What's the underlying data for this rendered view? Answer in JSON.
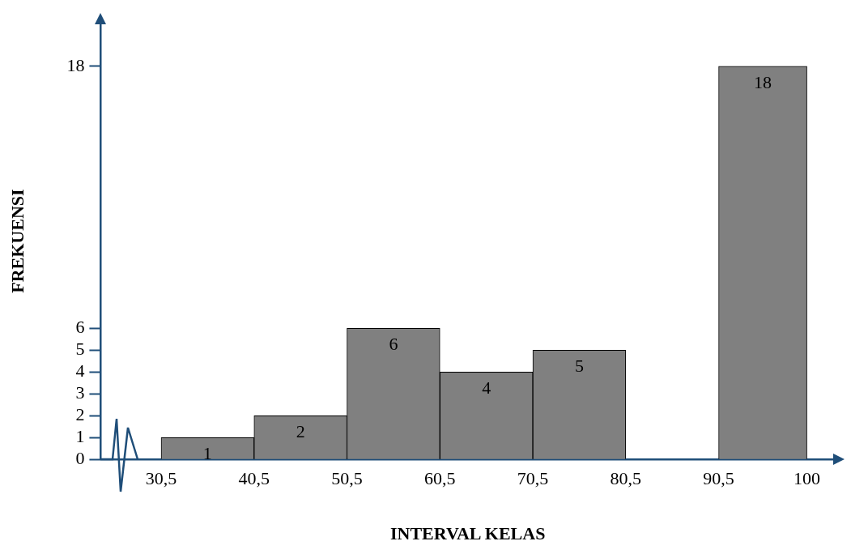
{
  "chart_data": {
    "type": "histogram",
    "xlabel": "INTERVAL KELAS",
    "ylabel": "FREKUENSI",
    "bins": [
      30.5,
      40.5,
      50.5,
      60.5,
      70.5,
      80.5,
      90.5,
      100
    ],
    "values": [
      1,
      2,
      6,
      4,
      5,
      0,
      18
    ],
    "value_labels": [
      "1",
      "2",
      "6",
      "4",
      "5",
      null,
      "18"
    ],
    "color": "#808080",
    "xlim": [
      24,
      103
    ],
    "xticks": [
      {
        "value": 30.5,
        "label": "30,5"
      },
      {
        "value": 40.5,
        "label": "40,5"
      },
      {
        "value": 50.5,
        "label": "50,5"
      },
      {
        "value": 60.5,
        "label": "60,5"
      },
      {
        "value": 70.5,
        "label": "70,5"
      },
      {
        "value": 80.5,
        "label": "80,5"
      },
      {
        "value": 90.5,
        "label": "90,5"
      },
      100
    ],
    "ylim": [
      0,
      20
    ],
    "yticks": [
      0,
      1,
      2,
      3,
      4,
      5,
      6,
      18
    ]
  }
}
